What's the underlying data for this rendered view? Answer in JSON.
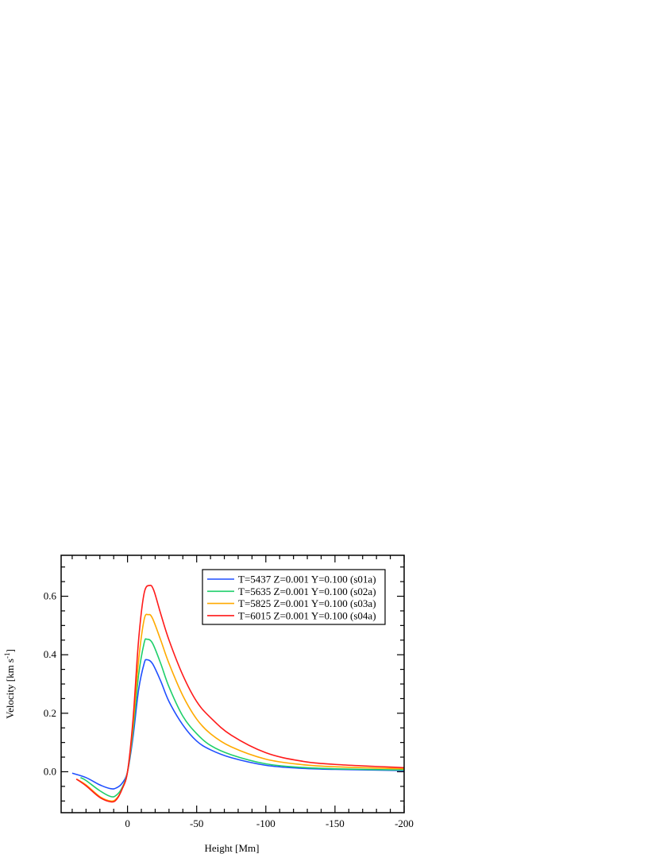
{
  "chart_data": {
    "type": "line",
    "title": "",
    "xlabel": "Height [Mm]",
    "ylabel": "Velocity [km s",
    "ylabel_superscript": "-1",
    "ylabel_close": "]",
    "xlim": [
      48,
      -200
    ],
    "ylim": [
      -0.14,
      0.74
    ],
    "xticks": [
      0,
      -50,
      -100,
      -150,
      -200
    ],
    "xtick_labels": [
      "0",
      "-50",
      "-100",
      "-150",
      "-200"
    ],
    "yticks": [
      0.0,
      0.2,
      0.4,
      0.6
    ],
    "ytick_labels": [
      "0.0",
      "0.2",
      "0.4",
      "0.6"
    ],
    "grid": false,
    "legend_position": "top-right",
    "series": [
      {
        "name": "T=5437 Z=0.001  Y=0.100 (s01a)",
        "color": "#1f4fff",
        "x": [
          40,
          30,
          20,
          12,
          8,
          4,
          0,
          -4,
          -8,
          -12,
          -14,
          -18,
          -24,
          -30,
          -40,
          -50,
          -60,
          -75,
          -100,
          -125,
          -150,
          -200
        ],
        "y": [
          -0.005,
          -0.02,
          -0.045,
          -0.058,
          -0.055,
          -0.04,
          0.0,
          0.12,
          0.28,
          0.37,
          0.383,
          0.37,
          0.31,
          0.24,
          0.16,
          0.105,
          0.075,
          0.048,
          0.022,
          0.012,
          0.008,
          0.004
        ]
      },
      {
        "name": "T=5635 Z=0.001  Y=0.100 (s02a)",
        "color": "#1ecf6a",
        "x": [
          34,
          30,
          20,
          12,
          8,
          4,
          0,
          -4,
          -8,
          -12,
          -14,
          -18,
          -24,
          -30,
          -40,
          -50,
          -60,
          -75,
          -100,
          -125,
          -150,
          -200
        ],
        "y": [
          -0.02,
          -0.03,
          -0.065,
          -0.085,
          -0.08,
          -0.055,
          0.0,
          0.14,
          0.33,
          0.44,
          0.453,
          0.44,
          0.37,
          0.29,
          0.19,
          0.13,
          0.09,
          0.058,
          0.027,
          0.015,
          0.01,
          0.006
        ]
      },
      {
        "name": "T=5825 Z=0.001  Y=0.100 (s03a)",
        "color": "#ffaa00",
        "x": [
          37,
          30,
          20,
          12,
          8,
          4,
          0,
          -4,
          -8,
          -12,
          -15,
          -18,
          -24,
          -30,
          -40,
          -50,
          -60,
          -75,
          -100,
          -125,
          -150,
          -200
        ],
        "y": [
          -0.025,
          -0.045,
          -0.085,
          -0.1,
          -0.092,
          -0.06,
          0.0,
          0.16,
          0.38,
          0.52,
          0.537,
          0.525,
          0.45,
          0.37,
          0.26,
          0.18,
          0.13,
          0.085,
          0.043,
          0.025,
          0.017,
          0.01
        ]
      },
      {
        "name": "T=6015 Z=0.001  Y=0.100 (s04a)",
        "color": "#ff1a1a",
        "x": [
          37,
          30,
          20,
          12,
          8,
          4,
          0,
          -4,
          -8,
          -12,
          -16,
          -19,
          -24,
          -30,
          -40,
          -50,
          -60,
          -75,
          -100,
          -125,
          -150,
          -200
        ],
        "y": [
          -0.025,
          -0.048,
          -0.088,
          -0.103,
          -0.095,
          -0.06,
          0.0,
          0.18,
          0.45,
          0.61,
          0.637,
          0.62,
          0.54,
          0.45,
          0.33,
          0.24,
          0.185,
          0.125,
          0.065,
          0.037,
          0.025,
          0.014
        ]
      }
    ]
  }
}
